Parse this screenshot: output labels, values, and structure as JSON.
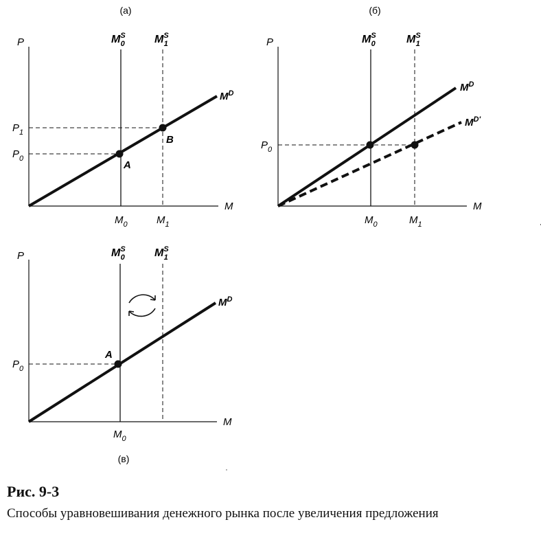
{
  "panels": [
    {
      "id": "a",
      "label": "(а)",
      "axis_p": "P",
      "axis_m": "M",
      "supply_labels": [
        {
          "base": "M",
          "sup": "S",
          "sub": "0"
        },
        {
          "base": "M",
          "sup": "S",
          "sub": "1"
        }
      ],
      "x_ticks": [
        {
          "base": "M",
          "sub": "0"
        },
        {
          "base": "M",
          "sub": "1"
        }
      ],
      "y_ticks": [
        {
          "base": "P",
          "sub": "0"
        },
        {
          "base": "P",
          "sub": "1"
        }
      ],
      "curves": [
        {
          "base": "M",
          "sup": "D"
        }
      ],
      "points": [
        "A",
        "B"
      ]
    },
    {
      "id": "b",
      "label": "(б)",
      "axis_p": "P",
      "axis_m": "M",
      "supply_labels": [
        {
          "base": "M",
          "sup": "S",
          "sub": "0"
        },
        {
          "base": "M",
          "sup": "S",
          "sub": "1"
        }
      ],
      "x_ticks": [
        {
          "base": "M",
          "sub": "0"
        },
        {
          "base": "M",
          "sub": "1"
        }
      ],
      "y_ticks": [
        {
          "base": "P",
          "sub": "0"
        }
      ],
      "curves": [
        {
          "base": "M",
          "sup": "D"
        },
        {
          "base": "M",
          "sup": "D'"
        }
      ]
    },
    {
      "id": "c",
      "label": "(в)",
      "axis_p": "P",
      "axis_m": "M",
      "supply_labels": [
        {
          "base": "M",
          "sup": "S",
          "sub": "0"
        },
        {
          "base": "M",
          "sup": "S",
          "sub": "1"
        }
      ],
      "x_ticks": [
        {
          "base": "M",
          "sub": "0"
        }
      ],
      "y_ticks": [
        {
          "base": "P",
          "sub": "0"
        }
      ],
      "curves": [
        {
          "base": "M",
          "sup": "D"
        }
      ],
      "points": [
        "A"
      ]
    }
  ],
  "caption": {
    "number": "Рис. 9-3",
    "text": "Способы уравновешивания денежного рынка после увеличения предложения"
  }
}
